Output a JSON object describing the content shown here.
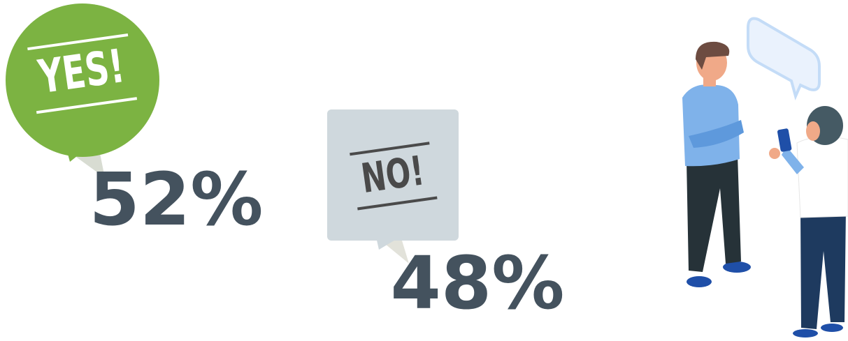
{
  "poll": [
    {
      "answer": "YES!",
      "share": "52%"
    },
    {
      "answer": "NO!",
      "share": "48%"
    }
  ]
}
